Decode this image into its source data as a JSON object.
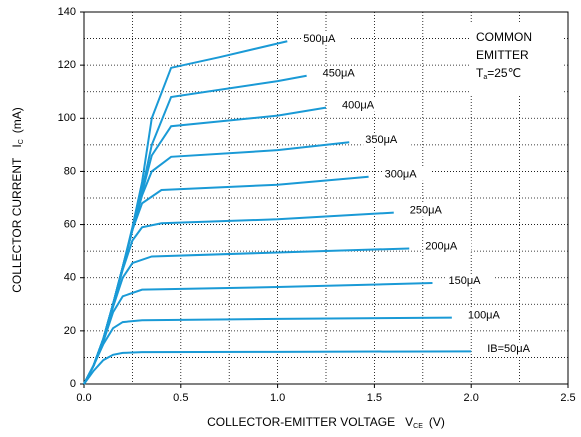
{
  "chart_data": {
    "type": "line",
    "xlabel": [
      "COLLECTOR-EMITTER VOLTAGE",
      "V",
      "CE",
      "(V)"
    ],
    "ylabel": [
      "COLLECTOR CURRENT",
      "I",
      "C",
      "(mA)"
    ],
    "annotation": [
      [
        "COMMON"
      ],
      [
        "EMITTER"
      ],
      [
        "T",
        "a",
        "=25℃"
      ]
    ],
    "xlim": [
      0,
      2.5
    ],
    "ylim": [
      0,
      140
    ],
    "xticks": [
      {
        "value": 0,
        "label": "0.0"
      },
      {
        "value": 0.5,
        "label": "0.5"
      },
      {
        "value": 1,
        "label": "1.0"
      },
      {
        "value": 1.5,
        "label": "1.5"
      },
      {
        "value": 2,
        "label": "2.0"
      },
      {
        "value": 2.5,
        "label": "2.5"
      }
    ],
    "yticks": [
      0,
      20,
      40,
      60,
      80,
      100,
      120,
      140
    ],
    "x_grid": [
      0.25,
      0.5,
      0.75,
      1,
      1.25,
      1.5,
      1.75,
      2,
      2.25
    ],
    "y_grid": [
      10,
      20,
      30,
      40,
      50,
      60,
      70,
      80,
      90,
      100,
      110,
      120,
      130
    ],
    "grid": true,
    "series": [
      {
        "name": "IB=50μA",
        "color": "#1a9ad6",
        "x": [
          0,
          0.05,
          0.1,
          0.15,
          0.2,
          0.3,
          1.0,
          2.0
        ],
        "values": [
          0,
          5,
          9,
          11,
          11.7,
          12,
          12.1,
          12.3
        ]
      },
      {
        "name": "100μA",
        "color": "#1a9ad6",
        "x": [
          0,
          0.05,
          0.1,
          0.15,
          0.2,
          0.3,
          1.0,
          1.9
        ],
        "values": [
          0,
          7,
          15,
          21,
          23.3,
          24,
          24.5,
          25
        ]
      },
      {
        "name": "150μA",
        "color": "#1a9ad6",
        "x": [
          0,
          0.05,
          0.1,
          0.15,
          0.2,
          0.3,
          1.0,
          1.8
        ],
        "values": [
          0,
          7,
          16,
          27,
          33,
          35.5,
          36.5,
          38
        ]
      },
      {
        "name": "200μA",
        "color": "#1a9ad6",
        "x": [
          0,
          0.05,
          0.1,
          0.15,
          0.2,
          0.25,
          0.35,
          1.0,
          1.68
        ],
        "values": [
          0,
          7,
          17,
          29,
          40,
          45.5,
          48,
          49.5,
          51
        ]
      },
      {
        "name": "250μA",
        "color": "#1a9ad6",
        "x": [
          0,
          0.05,
          0.1,
          0.15,
          0.2,
          0.25,
          0.3,
          0.4,
          1.0,
          1.6
        ],
        "values": [
          0,
          7,
          17,
          30,
          43,
          54,
          59,
          60.5,
          62,
          64.5
        ]
      },
      {
        "name": "300μA",
        "color": "#1a9ad6",
        "x": [
          0,
          0.05,
          0.1,
          0.15,
          0.2,
          0.25,
          0.3,
          0.4,
          1.0,
          1.47
        ],
        "values": [
          0,
          7,
          17,
          30,
          44,
          58,
          68,
          73,
          75,
          78
        ]
      },
      {
        "name": "350μA",
        "color": "#1a9ad6",
        "x": [
          0,
          0.05,
          0.1,
          0.15,
          0.2,
          0.25,
          0.3,
          0.35,
          0.45,
          1.0,
          1.37
        ],
        "values": [
          0,
          7,
          17,
          30,
          44,
          58,
          71,
          80,
          85.5,
          88,
          91
        ]
      },
      {
        "name": "400μA",
        "color": "#1a9ad6",
        "x": [
          0,
          0.05,
          0.1,
          0.15,
          0.2,
          0.25,
          0.3,
          0.35,
          0.45,
          1.0,
          1.25
        ],
        "values": [
          0,
          7,
          17,
          30,
          44,
          58,
          72,
          86,
          97,
          101,
          104
        ]
      },
      {
        "name": "450μA",
        "color": "#1a9ad6",
        "x": [
          0,
          0.05,
          0.1,
          0.15,
          0.2,
          0.25,
          0.3,
          0.35,
          0.45,
          1.0,
          1.15
        ],
        "values": [
          0,
          7,
          17,
          30,
          44,
          58,
          73,
          90,
          108,
          114,
          116
        ]
      },
      {
        "name": "500μA",
        "color": "#1a9ad6",
        "x": [
          0,
          0.05,
          0.1,
          0.15,
          0.2,
          0.25,
          0.3,
          0.35,
          0.45,
          0.7,
          1.05
        ],
        "values": [
          0,
          7,
          17,
          30,
          44,
          59,
          76,
          100,
          119,
          123,
          129
        ]
      }
    ]
  }
}
